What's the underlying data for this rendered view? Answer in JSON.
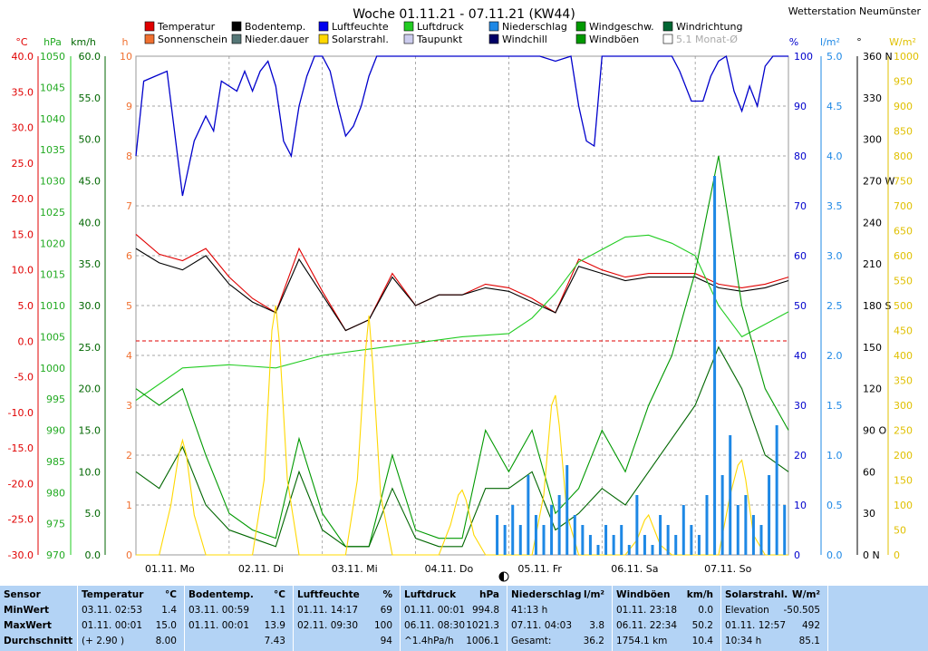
{
  "title": "Woche 01.11.21 - 07.11.21 (KW44)",
  "station": "Wetterstation Neumünster",
  "colors": {
    "temperature": "#e00000",
    "soil": "#000000",
    "humidity": "#0000dd",
    "pressure": "#22cc22",
    "sunshine": "#f07030",
    "precipitation": "#1e88e5",
    "solar": "#ffd800",
    "dewpoint": "#000088",
    "windspeed": "#006600",
    "gust": "#009900",
    "winddir": "#006633",
    "windchill": "#000066"
  },
  "legend": [
    {
      "label": "Temperatur",
      "color": "#e00000"
    },
    {
      "label": "Bodentemp.",
      "color": "#000000"
    },
    {
      "label": "Luftfeuchte",
      "color": "#0000ee"
    },
    {
      "label": "Luftdruck",
      "color": "#22cc22"
    },
    {
      "label": "Niederschlag",
      "color": "#1e88e5"
    },
    {
      "label": "Windgeschw.",
      "color": "#009900"
    },
    {
      "label": "Windrichtung",
      "color": "#006633"
    },
    {
      "label": "Sonnenschein",
      "color": "#f07030"
    },
    {
      "label": "Nieder.dauer",
      "color": "#557777"
    },
    {
      "label": "Solarstrahl.",
      "color": "#ffd800"
    },
    {
      "label": "Taupunkt",
      "color": "#ccccee"
    },
    {
      "label": "Windchill",
      "color": "#000066"
    },
    {
      "label": "Windböen",
      "color": "#009900"
    },
    {
      "label": "5.1 Monat-Ø",
      "color": "#ffffff"
    }
  ],
  "axes": {
    "temp": {
      "unit": "°C",
      "ticks": [
        "40.0",
        "35.0",
        "30.0",
        "25.0",
        "20.0",
        "15.0",
        "10.0",
        "5.0",
        "0.0",
        "-5.0",
        "-10.0",
        "-15.0",
        "-20.0",
        "-25.0",
        "-30.0"
      ],
      "range": [
        -30,
        40
      ]
    },
    "pressure": {
      "unit": "hPa",
      "ticks": [
        "1050",
        "1045",
        "1040",
        "1035",
        "1030",
        "1025",
        "1020",
        "1015",
        "1010",
        "1005",
        "1000",
        "995",
        "990",
        "985",
        "980",
        "975",
        "970"
      ],
      "range": [
        970,
        1050
      ]
    },
    "wind": {
      "unit": "km/h",
      "ticks": [
        "60.0",
        "55.0",
        "50.0",
        "45.0",
        "40.0",
        "35.0",
        "30.0",
        "25.0",
        "20.0",
        "15.0",
        "10.0",
        "5.0",
        "0.0"
      ],
      "range": [
        0,
        60
      ]
    },
    "hours": {
      "unit": "h",
      "ticks": [
        "10",
        "9",
        "8",
        "7",
        "6",
        "5",
        "4",
        "3",
        "2",
        "1",
        "0"
      ],
      "range": [
        0,
        10
      ]
    },
    "humidity": {
      "unit": "%",
      "ticks": [
        "100",
        "90",
        "80",
        "70",
        "60",
        "50",
        "40",
        "30",
        "20",
        "10",
        "0"
      ],
      "range": [
        0,
        100
      ]
    },
    "rain": {
      "unit": "l/m²",
      "ticks": [
        "5.0",
        "4.5",
        "4.0",
        "3.5",
        "3.0",
        "2.5",
        "2.0",
        "1.5",
        "1.0",
        "0.5",
        "0.0"
      ],
      "range": [
        0,
        5
      ]
    },
    "dir": {
      "unit": "°",
      "ticks": [
        "360 N",
        "330",
        "300",
        "270 W",
        "240",
        "210",
        "180 S",
        "150",
        "120",
        "90 O",
        "60",
        "30",
        "0 N"
      ],
      "range": [
        0,
        360
      ]
    },
    "solar": {
      "unit": "W/m²",
      "ticks": [
        "1000",
        "950",
        "900",
        "850",
        "800",
        "750",
        "700",
        "650",
        "600",
        "550",
        "500",
        "450",
        "400",
        "350",
        "300",
        "250",
        "200",
        "150",
        "100",
        "50",
        "0"
      ],
      "range": [
        0,
        1000
      ]
    }
  },
  "days": [
    "01.11. Mo",
    "02.11. Di",
    "03.11. Mi",
    "04.11. Do",
    "05.11. Fr",
    "06.11. Sa",
    "07.11. So"
  ],
  "chart_data": {
    "type": "line",
    "title": "Woche 01.11.21 - 07.11.21 (KW44)",
    "x_unit": "hours since 01.11. 00:00",
    "series": [
      {
        "name": "Temperatur",
        "axis": "temp",
        "x": [
          0,
          6,
          12,
          18,
          24,
          30,
          36,
          42,
          48,
          54,
          60,
          66,
          72,
          78,
          84,
          90,
          96,
          102,
          108,
          114,
          120,
          126,
          132,
          138,
          144,
          150,
          156,
          162,
          168
        ],
        "values": [
          15.0,
          12.2,
          11.3,
          13.0,
          9.0,
          6.0,
          4.0,
          13.0,
          7.0,
          1.5,
          3.0,
          9.5,
          5.0,
          6.5,
          6.5,
          8.0,
          7.5,
          6.0,
          4.0,
          11.5,
          10.0,
          9.0,
          9.5,
          9.5,
          9.5,
          8.0,
          7.5,
          8.0,
          9.0
        ]
      },
      {
        "name": "Bodentemp.",
        "axis": "temp",
        "x": [
          0,
          6,
          12,
          18,
          24,
          30,
          36,
          42,
          48,
          54,
          60,
          66,
          72,
          78,
          84,
          90,
          96,
          102,
          108,
          114,
          120,
          126,
          132,
          138,
          144,
          150,
          156,
          162,
          168
        ],
        "values": [
          13.0,
          11.0,
          10.0,
          12.0,
          8.0,
          5.5,
          4.0,
          11.5,
          6.5,
          1.5,
          3.0,
          9.0,
          5.0,
          6.5,
          6.5,
          7.5,
          7.0,
          5.5,
          4.0,
          10.5,
          9.5,
          8.5,
          9.0,
          9.0,
          9.0,
          7.5,
          7.0,
          7.5,
          8.5
        ]
      },
      {
        "name": "Luftfeuchte",
        "axis": "humidity",
        "x": [
          0,
          2,
          5,
          8,
          12,
          15,
          18,
          20,
          22,
          26,
          28,
          30,
          32,
          34,
          36,
          38,
          40,
          42,
          44,
          46,
          48,
          50,
          52,
          54,
          56,
          58,
          60,
          62,
          64,
          66,
          68,
          72,
          76,
          80,
          84,
          90,
          96,
          104,
          108,
          112,
          114,
          116,
          118,
          120,
          122,
          124,
          130,
          134,
          138,
          140,
          143,
          146,
          148,
          150,
          152,
          154,
          156,
          158,
          160,
          162,
          164,
          166,
          168
        ],
        "values": [
          80,
          95,
          96,
          97,
          72,
          83,
          88,
          85,
          95,
          93,
          97,
          93,
          97,
          99,
          94,
          83,
          80,
          90,
          96,
          100,
          100,
          97,
          90,
          84,
          86,
          90,
          96,
          100,
          100,
          100,
          100,
          100,
          100,
          100,
          100,
          100,
          100,
          100,
          99,
          100,
          90,
          83,
          82,
          100,
          100,
          100,
          100,
          100,
          100,
          97,
          91,
          91,
          96,
          99,
          100,
          93,
          89,
          94,
          90,
          98,
          100,
          100,
          100
        ]
      },
      {
        "name": "Luftdruck",
        "axis": "pressure",
        "x": [
          0,
          12,
          24,
          36,
          48,
          60,
          72,
          84,
          96,
          102,
          108,
          114,
          120,
          126,
          132,
          138,
          144,
          150,
          156,
          162,
          168
        ],
        "values": [
          994.8,
          1000,
          1000.5,
          1000,
          1002,
          1003,
          1004,
          1005,
          1005.5,
          1008,
          1012,
          1017,
          1019,
          1021,
          1021.3,
          1020,
          1018,
          1010,
          1005,
          1007,
          1009
        ]
      },
      {
        "name": "Windböen",
        "axis": "wind",
        "x": [
          0,
          6,
          12,
          18,
          24,
          30,
          36,
          42,
          48,
          54,
          60,
          66,
          72,
          78,
          84,
          90,
          96,
          102,
          108,
          114,
          120,
          126,
          132,
          138,
          144,
          150,
          156,
          162,
          168
        ],
        "values": [
          20,
          18,
          20,
          12,
          5,
          3,
          2,
          14,
          5,
          1,
          1,
          12,
          3,
          2,
          2,
          15,
          10,
          15,
          5,
          8,
          15,
          10,
          18,
          24,
          34,
          48,
          30,
          20,
          15
        ]
      },
      {
        "name": "Windgeschw.",
        "axis": "wind",
        "x": [
          0,
          6,
          12,
          18,
          24,
          30,
          36,
          42,
          48,
          54,
          60,
          66,
          72,
          78,
          84,
          90,
          96,
          102,
          108,
          114,
          120,
          126,
          132,
          138,
          144,
          150,
          156,
          162,
          168
        ],
        "values": [
          10,
          8,
          13,
          6,
          3,
          2,
          1,
          10,
          3,
          1,
          1,
          8,
          2,
          1,
          1,
          8,
          8,
          10,
          3,
          5,
          8,
          6,
          10,
          14,
          18,
          25,
          20,
          12,
          10
        ]
      },
      {
        "name": "Solarstrahl.",
        "axis": "solar",
        "x": [
          0,
          6,
          9,
          11,
          12,
          13,
          15,
          18,
          24,
          30,
          33,
          35,
          36,
          37,
          39,
          42,
          48,
          54,
          57,
          59,
          60,
          61,
          63,
          66,
          72,
          78,
          81,
          83,
          84,
          85,
          87,
          90,
          96,
          102,
          105,
          107,
          108,
          109,
          111,
          114,
          120,
          126,
          129,
          131,
          132,
          133,
          135,
          138,
          144,
          150,
          153,
          155,
          156,
          157,
          159,
          162,
          168
        ],
        "values": [
          0,
          0,
          100,
          200,
          230,
          200,
          80,
          0,
          0,
          0,
          150,
          450,
          500,
          420,
          150,
          0,
          0,
          0,
          150,
          400,
          480,
          380,
          120,
          0,
          0,
          0,
          60,
          120,
          130,
          110,
          40,
          0,
          0,
          0,
          120,
          300,
          320,
          260,
          80,
          0,
          0,
          0,
          30,
          70,
          80,
          60,
          20,
          0,
          0,
          0,
          120,
          180,
          190,
          150,
          40,
          0,
          0
        ]
      },
      {
        "name": "Niederschlag",
        "axis": "rain",
        "type": "bar",
        "x": [
          93,
          95,
          97,
          99,
          101,
          103,
          105,
          107,
          109,
          111,
          113,
          115,
          117,
          119,
          121,
          123,
          125,
          127,
          129,
          131,
          133,
          135,
          137,
          139,
          141,
          143,
          145,
          147,
          149,
          151,
          153,
          155,
          157,
          159,
          161,
          163,
          165,
          167
        ],
        "values": [
          0.4,
          0.3,
          0.5,
          0.3,
          0.8,
          0.4,
          0.3,
          0.5,
          0.6,
          0.9,
          0.4,
          0.3,
          0.2,
          0.1,
          0.3,
          0.2,
          0.3,
          0.1,
          0.6,
          0.2,
          0.1,
          0.4,
          0.3,
          0.2,
          0.5,
          0.3,
          0.2,
          0.6,
          3.8,
          0.8,
          1.2,
          0.5,
          0.6,
          0.4,
          0.3,
          0.8,
          1.3,
          0.5
        ]
      }
    ]
  },
  "stats": {
    "headers": {
      "sensor": "Sensor",
      "min": "MinWert",
      "max": "MaxWert",
      "avg": "Durchschnitt"
    },
    "columns": [
      {
        "name": "Temperatur",
        "unit": "°C",
        "min_t": "03.11.  02:53",
        "min_v": "1.4",
        "max_t": "01.11.  00:01",
        "max_v": "15.0",
        "avg_t": "(+ 2.90 )",
        "avg_v": "8.00"
      },
      {
        "name": "Bodentemp.",
        "unit": "°C",
        "min_t": "03.11.  00:59",
        "min_v": "1.1",
        "max_t": "01.11.  00:01",
        "max_v": "13.9",
        "avg_t": "",
        "avg_v": "7.43"
      },
      {
        "name": "Luftfeuchte",
        "unit": "%",
        "min_t": "01.11.  14:17",
        "min_v": "69",
        "max_t": "02.11.  09:30",
        "max_v": "100",
        "avg_t": "",
        "avg_v": "94"
      },
      {
        "name": "Luftdruck",
        "unit": "hPa",
        "min_t": "01.11.  00:01",
        "min_v": "994.8",
        "max_t": "06.11.  08:30",
        "max_v": "1021.3",
        "avg_t": "^1.4hPa/h",
        "avg_v": "1006.1"
      },
      {
        "name": "Niederschlag",
        "unit": "l/m²",
        "min_t": "41:13 h",
        "min_v": "",
        "max_t": "07.11.  04:03",
        "max_v": "3.8",
        "avg_t": "Gesamt:",
        "avg_v": "36.2"
      },
      {
        "name": "Windböen",
        "unit": "km/h",
        "min_t": "01.11.  23:18",
        "min_v": "0.0",
        "max_t": "06.11.  22:34",
        "max_v": "50.2",
        "avg_t": "1754.1 km",
        "avg_v": "10.4"
      },
      {
        "name": "Solarstrahl.",
        "unit": "W/m²",
        "min_t": "Elevation",
        "min_v": "-50.505",
        "max_t": "01.11.  12:57",
        "max_v": "492",
        "avg_t": "10:34 h",
        "avg_v": "85.1"
      }
    ]
  }
}
